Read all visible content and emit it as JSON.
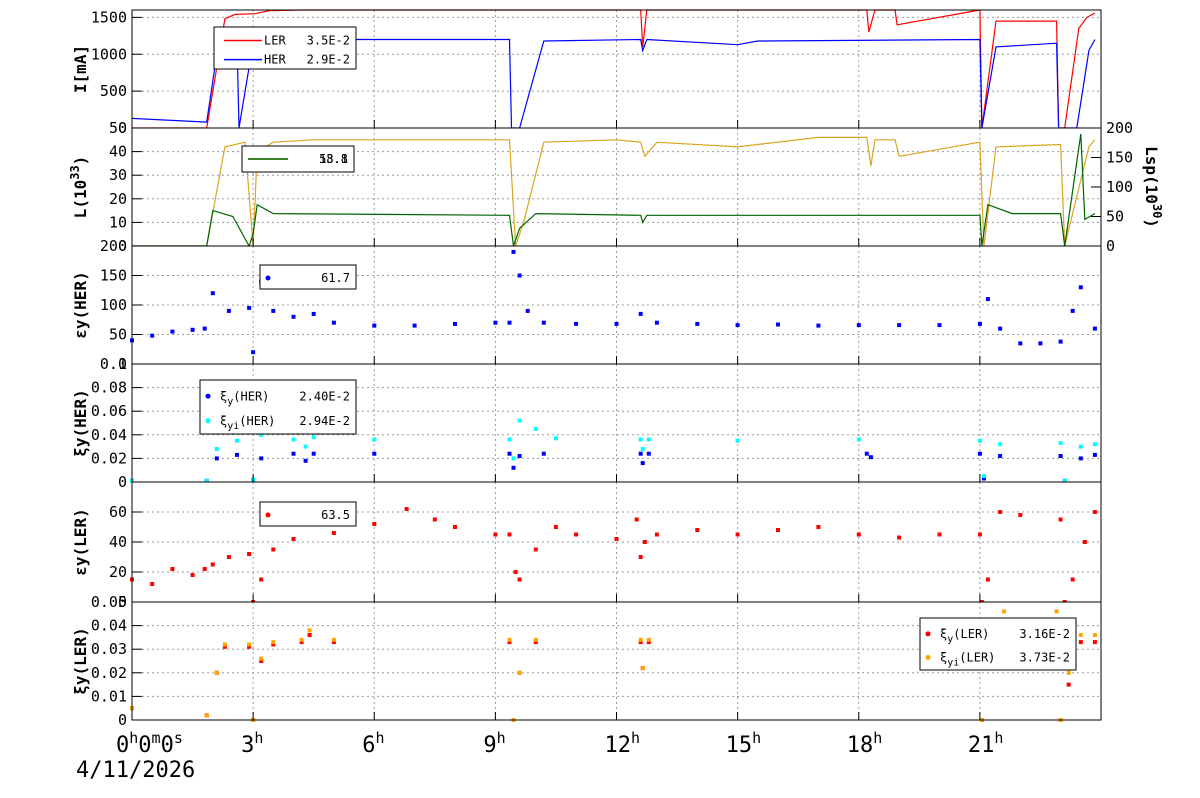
{
  "chart_data": [
    {
      "type": "line",
      "ylabel": "I[mA]",
      "ylim": [
        0,
        1600
      ],
      "yticks": [
        0,
        500,
        1000,
        1500
      ],
      "grid": true,
      "legend_position": "top-left",
      "series": [
        {
          "name": "LER",
          "legend_value": "3.5E-2",
          "color": "#ff0000",
          "x": [
            0,
            1.85,
            2.3,
            2.55,
            3.05,
            3.4,
            4.2,
            4.3,
            12.6,
            12.65,
            12.75,
            18.2,
            18.25,
            18.4,
            18.9,
            18.95,
            21.0,
            21.05,
            21.4,
            22.9,
            22.95,
            23.1,
            23.45,
            23.65,
            23.85
          ],
          "y": [
            0,
            0,
            1480,
            1540,
            1550,
            1590,
            1600,
            1600,
            1600,
            1100,
            1600,
            1600,
            1300,
            1600,
            1600,
            1400,
            1600,
            0,
            1450,
            1450,
            0,
            0,
            1350,
            1500,
            1560
          ]
        },
        {
          "name": "HER",
          "legend_value": "2.9E-2",
          "color": "#0000ff",
          "x": [
            0,
            1.85,
            2.1,
            2.6,
            2.65,
            3.0,
            3.5,
            4.0,
            9.35,
            9.4,
            9.6,
            10.2,
            12.6,
            12.65,
            12.75,
            15.0,
            15.5,
            21.0,
            21.05,
            21.4,
            22.9,
            22.95,
            23.4,
            23.7,
            23.85
          ],
          "y": [
            130,
            80,
            1000,
            1200,
            0,
            1150,
            1200,
            1200,
            1200,
            0,
            0,
            1180,
            1200,
            1050,
            1200,
            1130,
            1180,
            1200,
            0,
            1100,
            1150,
            0,
            0,
            1050,
            1200
          ]
        }
      ]
    },
    {
      "type": "line",
      "ylabel": "L(10^33)",
      "ylim": [
        0,
        50
      ],
      "yticks": [
        0,
        10,
        20,
        30,
        40,
        50
      ],
      "y2label": "Lsp(10^30)",
      "y2lim": [
        0,
        200
      ],
      "y2ticks": [
        0,
        50,
        100,
        150,
        200
      ],
      "grid": true,
      "legend_position": "top-left",
      "legend_values": [
        "58.8",
        "13.1"
      ],
      "series": [
        {
          "name": "",
          "axis": "left",
          "color": "#daa520",
          "x": [
            0,
            1.85,
            2.3,
            2.8,
            3.0,
            3.1,
            3.5,
            4.5,
            6,
            9.35,
            9.5,
            9.7,
            10.2,
            12,
            12.6,
            12.7,
            13,
            15,
            17,
            18.2,
            18.3,
            18.4,
            18.9,
            19,
            21.0,
            21.1,
            21.4,
            23.0,
            23.1,
            23.7,
            23.85
          ],
          "y": [
            0,
            0,
            42,
            44,
            0,
            40,
            44,
            45,
            45,
            45,
            0,
            10,
            44,
            45,
            44,
            38,
            44,
            42,
            46,
            46,
            34,
            45,
            45,
            38,
            44,
            0,
            42,
            43,
            0,
            42,
            45
          ]
        },
        {
          "name": "",
          "axis": "right",
          "color": "#006400",
          "x": [
            0,
            1.85,
            2.0,
            2.5,
            2.9,
            3.0,
            3.1,
            3.5,
            9.35,
            9.45,
            9.6,
            10.0,
            12.6,
            12.65,
            12.75,
            21.0,
            21.05,
            21.2,
            21.8,
            23.0,
            23.1,
            23.5,
            23.6,
            23.85
          ],
          "y": [
            0,
            0,
            60,
            50,
            0,
            20,
            70,
            55,
            52,
            0,
            30,
            55,
            52,
            40,
            52,
            52,
            0,
            70,
            55,
            55,
            0,
            190,
            45,
            55
          ]
        }
      ]
    },
    {
      "type": "scatter",
      "ylabel": "εy(HER)",
      "ylim": [
        0,
        200
      ],
      "yticks": [
        0,
        50,
        100,
        150,
        200
      ],
      "grid": true,
      "legend_position": "top-left",
      "legend_values": [
        "61.7"
      ],
      "series": [
        {
          "name": "",
          "color": "#0000ff",
          "x": [
            0,
            0.5,
            1,
            1.5,
            1.8,
            2.0,
            2.4,
            2.9,
            3.0,
            3.2,
            3.5,
            4.0,
            4.5,
            5,
            6,
            7,
            8,
            9,
            9.35,
            9.45,
            9.6,
            9.8,
            10.2,
            11,
            12,
            12.6,
            13,
            14,
            15,
            16,
            17,
            18,
            19,
            20,
            21.0,
            21.2,
            21.5,
            22,
            22.5,
            23,
            23.3,
            23.5,
            23.85
          ],
          "y": [
            40,
            48,
            55,
            58,
            60,
            120,
            90,
            95,
            20,
            140,
            90,
            80,
            85,
            70,
            65,
            65,
            68,
            70,
            70,
            190,
            150,
            90,
            70,
            68,
            68,
            85,
            70,
            68,
            66,
            67,
            65,
            66,
            66,
            66,
            68,
            110,
            60,
            35,
            35,
            38,
            90,
            130,
            60
          ]
        }
      ]
    },
    {
      "type": "scatter",
      "ylabel": "ξy(HER)",
      "ylim": [
        0,
        0.1
      ],
      "yticks": [
        0,
        0.02,
        0.04,
        0.06,
        0.08,
        0.1
      ],
      "ytick_labels": [
        "0",
        "0.02",
        "0.04",
        "0.06",
        "0.08",
        "0.1"
      ],
      "grid": true,
      "legend_position": "top-left",
      "series": [
        {
          "name": "ξy(HER)",
          "legend_value": "2.40E-2",
          "color": "#0000ff",
          "x": [
            0,
            1.85,
            2.1,
            2.6,
            3.0,
            3.2,
            4.0,
            4.3,
            4.5,
            6,
            9.35,
            9.45,
            9.6,
            10.2,
            12.6,
            12.65,
            12.8,
            18.2,
            18.3,
            21.0,
            21.1,
            21.5,
            23.0,
            23.1,
            23.5,
            23.85
          ],
          "y": [
            0.001,
            0.001,
            0.02,
            0.023,
            0.002,
            0.02,
            0.024,
            0.018,
            0.024,
            0.024,
            0.024,
            0.012,
            0.022,
            0.024,
            0.024,
            0.016,
            0.024,
            0.024,
            0.021,
            0.024,
            0.003,
            0.022,
            0.022,
            0.001,
            0.02,
            0.023
          ]
        },
        {
          "name": "ξyi(HER)",
          "legend_value": "2.94E-2",
          "color": "#00ffff",
          "x": [
            0,
            1.85,
            2.1,
            2.6,
            3.0,
            3.2,
            4.0,
            4.3,
            4.5,
            6,
            9.35,
            9.45,
            9.6,
            10.0,
            10.5,
            12.6,
            12.65,
            12.8,
            15,
            18,
            21.0,
            21.1,
            21.5,
            23.0,
            23.1,
            23.5,
            23.85
          ],
          "y": [
            0.001,
            0.001,
            0.028,
            0.035,
            0.002,
            0.04,
            0.036,
            0.03,
            0.038,
            0.036,
            0.036,
            0.02,
            0.052,
            0.045,
            0.037,
            0.036,
            0.028,
            0.036,
            0.035,
            0.036,
            0.035,
            0.005,
            0.032,
            0.033,
            0.001,
            0.03,
            0.032
          ]
        }
      ]
    },
    {
      "type": "scatter",
      "ylabel": "εy(LER)",
      "ylim": [
        0,
        80
      ],
      "yticks": [
        0,
        20,
        40,
        60
      ],
      "grid": true,
      "legend_position": "top-left",
      "legend_values": [
        "63.5"
      ],
      "series": [
        {
          "name": "",
          "color": "#ff0000",
          "x": [
            0,
            0.5,
            1,
            1.5,
            1.8,
            2.0,
            2.4,
            2.9,
            3.0,
            3.2,
            3.5,
            4,
            5,
            6,
            6.8,
            7.5,
            8,
            9,
            9.35,
            9.5,
            9.6,
            10,
            10.5,
            11,
            12,
            12.5,
            12.6,
            12.7,
            13,
            14,
            15,
            16,
            17,
            18,
            19,
            20,
            21.0,
            21.05,
            21.2,
            21.5,
            22,
            23,
            23.1,
            23.3,
            23.6,
            23.85
          ],
          "y": [
            15,
            12,
            22,
            18,
            22,
            25,
            30,
            32,
            0,
            15,
            35,
            42,
            46,
            52,
            62,
            55,
            50,
            45,
            45,
            20,
            15,
            35,
            50,
            45,
            42,
            55,
            30,
            40,
            45,
            48,
            45,
            48,
            50,
            45,
            43,
            45,
            45,
            0,
            15,
            60,
            58,
            55,
            0,
            15,
            40,
            60
          ]
        }
      ]
    },
    {
      "type": "scatter",
      "ylabel": "ξy(LER)",
      "ylim": [
        0,
        0.05
      ],
      "yticks": [
        0,
        0.01,
        0.02,
        0.03,
        0.04,
        0.05
      ],
      "ytick_labels": [
        "0",
        "0.01",
        "0.02",
        "0.03",
        "0.04",
        "0.05"
      ],
      "grid": true,
      "legend_position": "top-right",
      "series": [
        {
          "name": "ξy(LER)",
          "legend_value": "3.16E-2",
          "color": "#ff0000",
          "x": [
            0,
            1.85,
            2.1,
            2.3,
            2.9,
            3.0,
            3.2,
            3.5,
            4.2,
            4.4,
            5,
            9.35,
            9.45,
            9.6,
            10,
            12.6,
            12.65,
            12.8,
            21.0,
            21.05,
            21.3,
            21.6,
            22.9,
            23.0,
            23.2,
            23.5,
            23.85
          ],
          "y": [
            0.005,
            0.002,
            0.02,
            0.031,
            0.031,
            0.0,
            0.025,
            0.032,
            0.033,
            0.036,
            0.033,
            0.033,
            0.0,
            0.02,
            0.033,
            0.033,
            0.022,
            0.033,
            0.033,
            0.0,
            0.025,
            0.034,
            0.034,
            0.0,
            0.015,
            0.033,
            0.033
          ]
        },
        {
          "name": "ξyi(LER)",
          "legend_value": "3.73E-2",
          "color": "#ffa500",
          "x": [
            0,
            1.85,
            2.1,
            2.3,
            2.9,
            3.0,
            3.2,
            3.5,
            4.2,
            4.4,
            5,
            9.35,
            9.45,
            9.6,
            10,
            12.6,
            12.65,
            12.8,
            21.0,
            21.05,
            21.3,
            21.6,
            22.9,
            23.0,
            23.2,
            23.5,
            23.85
          ],
          "y": [
            0.005,
            0.002,
            0.02,
            0.032,
            0.032,
            0.0,
            0.026,
            0.033,
            0.034,
            0.038,
            0.034,
            0.034,
            0.0,
            0.02,
            0.034,
            0.034,
            0.022,
            0.034,
            0.034,
            0.0,
            0.03,
            0.046,
            0.046,
            0.0,
            0.02,
            0.036,
            0.036
          ]
        }
      ]
    }
  ],
  "x_axis": {
    "range_hours": [
      0,
      24
    ],
    "ticks": [
      {
        "hour": 0,
        "label": "0h0m0s",
        "parts": [
          "0",
          "h",
          "0",
          "m",
          "0",
          "s"
        ]
      },
      {
        "hour": 3,
        "label": "3h",
        "parts": [
          "3",
          "h"
        ]
      },
      {
        "hour": 6,
        "label": "6h",
        "parts": [
          "6",
          "h"
        ]
      },
      {
        "hour": 9,
        "label": "9h",
        "parts": [
          "9",
          "h"
        ]
      },
      {
        "hour": 12,
        "label": "12h",
        "parts": [
          "12",
          "h"
        ]
      },
      {
        "hour": 15,
        "label": "15h",
        "parts": [
          "15",
          "h"
        ]
      },
      {
        "hour": 18,
        "label": "18h",
        "parts": [
          "18",
          "h"
        ]
      },
      {
        "hour": 21,
        "label": "21h",
        "parts": [
          "21",
          "h"
        ]
      }
    ],
    "date": "4/11/2026"
  }
}
